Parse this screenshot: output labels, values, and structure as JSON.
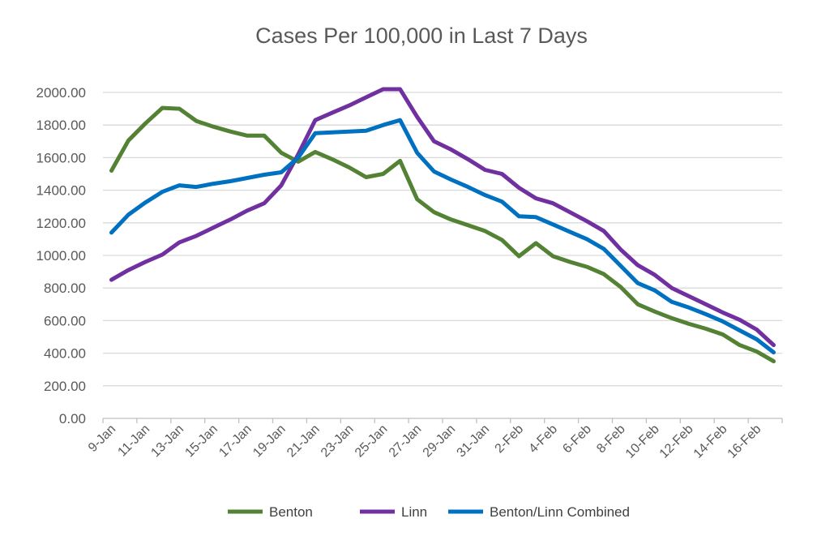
{
  "chart_data": {
    "type": "line",
    "title": "Cases Per 100,000 in Last 7 Days",
    "xlabel": "",
    "ylabel": "",
    "ylim": [
      0,
      2000
    ],
    "yticks": [
      "0.00",
      "200.00",
      "400.00",
      "600.00",
      "800.00",
      "1000.00",
      "1200.00",
      "1400.00",
      "1600.00",
      "1800.00",
      "2000.00"
    ],
    "grid": true,
    "legend_position": "bottom",
    "x": [
      "9-Jan",
      "10-Jan",
      "11-Jan",
      "12-Jan",
      "13-Jan",
      "14-Jan",
      "15-Jan",
      "16-Jan",
      "17-Jan",
      "18-Jan",
      "19-Jan",
      "20-Jan",
      "21-Jan",
      "22-Jan",
      "23-Jan",
      "24-Jan",
      "25-Jan",
      "26-Jan",
      "27-Jan",
      "28-Jan",
      "29-Jan",
      "30-Jan",
      "31-Jan",
      "1-Feb",
      "2-Feb",
      "3-Feb",
      "4-Feb",
      "5-Feb",
      "6-Feb",
      "7-Feb",
      "8-Feb",
      "9-Feb",
      "10-Feb",
      "11-Feb",
      "12-Feb",
      "13-Feb",
      "14-Feb",
      "15-Feb",
      "16-Feb",
      "17-Feb"
    ],
    "xtick_labels": [
      "9-Jan",
      "11-Jan",
      "13-Jan",
      "15-Jan",
      "17-Jan",
      "19-Jan",
      "21-Jan",
      "23-Jan",
      "25-Jan",
      "27-Jan",
      "29-Jan",
      "31-Jan",
      "2-Feb",
      "4-Feb",
      "6-Feb",
      "8-Feb",
      "10-Feb",
      "12-Feb",
      "14-Feb",
      "16-Feb"
    ],
    "series": [
      {
        "name": "Benton",
        "color": "#548235",
        "values": [
          1520,
          1705,
          1810,
          1905,
          1900,
          1825,
          1790,
          1760,
          1735,
          1735,
          1630,
          1575,
          1635,
          1590,
          1540,
          1480,
          1500,
          1580,
          1345,
          1265,
          1220,
          1185,
          1150,
          1095,
          995,
          1075,
          995,
          960,
          930,
          885,
          805,
          700,
          655,
          615,
          580,
          550,
          515,
          450,
          410,
          350
        ]
      },
      {
        "name": "Linn",
        "color": "#7030a0",
        "values": [
          850,
          910,
          960,
          1005,
          1080,
          1120,
          1170,
          1220,
          1275,
          1320,
          1430,
          1620,
          1830,
          1875,
          1920,
          1970,
          2020,
          2020,
          1850,
          1700,
          1650,
          1590,
          1525,
          1500,
          1415,
          1350,
          1320,
          1265,
          1210,
          1150,
          1035,
          940,
          880,
          800,
          750,
          700,
          650,
          605,
          545,
          450
        ]
      },
      {
        "name": "Benton/Linn Combined",
        "color": "#0070c0",
        "values": [
          1140,
          1250,
          1325,
          1390,
          1430,
          1420,
          1440,
          1455,
          1475,
          1495,
          1510,
          1600,
          1750,
          1755,
          1760,
          1765,
          1800,
          1830,
          1630,
          1515,
          1465,
          1420,
          1370,
          1330,
          1240,
          1235,
          1190,
          1145,
          1100,
          1040,
          935,
          830,
          785,
          715,
          680,
          640,
          595,
          540,
          485,
          405
        ]
      }
    ]
  }
}
